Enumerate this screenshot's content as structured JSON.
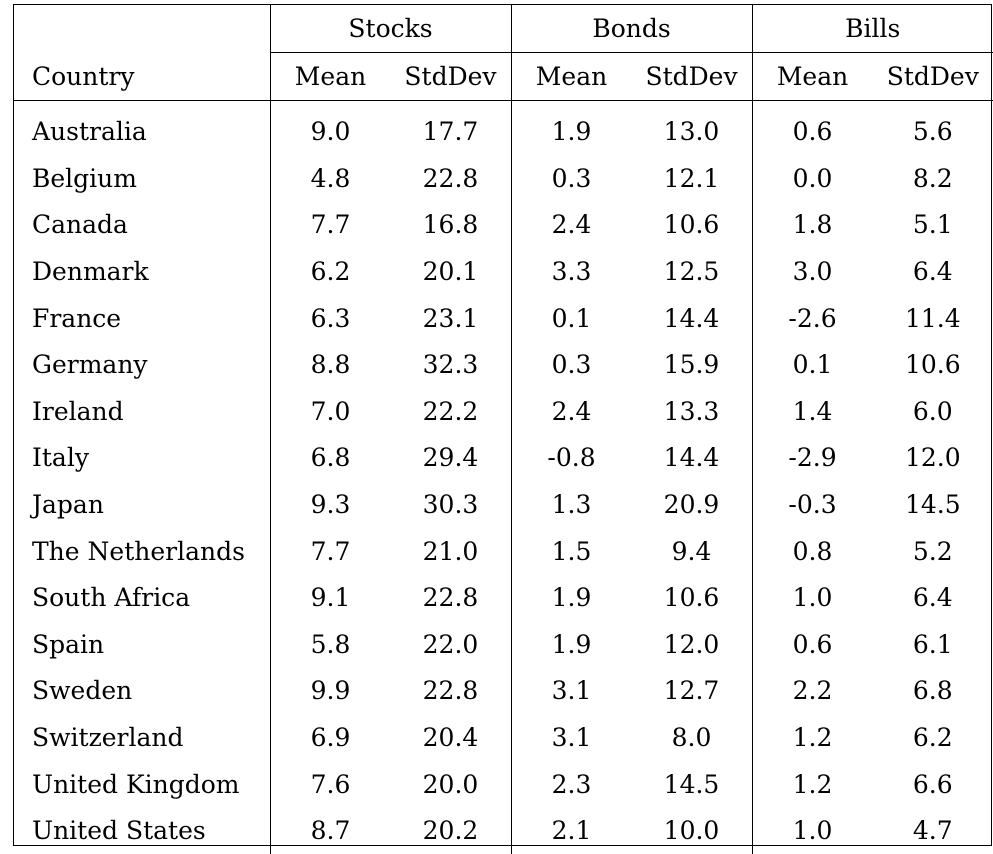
{
  "header": {
    "groups": [
      "Stocks",
      "Bonds",
      "Bills"
    ],
    "country_label": "Country",
    "sub": [
      "Mean",
      "StdDev",
      "Mean",
      "StdDev",
      "Mean",
      "StdDev"
    ]
  },
  "rows": [
    {
      "country": "Australia",
      "vals": [
        "9.0",
        "17.7",
        "1.9",
        "13.0",
        "0.6",
        "5.6"
      ]
    },
    {
      "country": "Belgium",
      "vals": [
        "4.8",
        "22.8",
        "0.3",
        "12.1",
        "0.0",
        "8.2"
      ]
    },
    {
      "country": "Canada",
      "vals": [
        "7.7",
        "16.8",
        "2.4",
        "10.6",
        "1.8",
        "5.1"
      ]
    },
    {
      "country": "Denmark",
      "vals": [
        "6.2",
        "20.1",
        "3.3",
        "12.5",
        "3.0",
        "6.4"
      ]
    },
    {
      "country": "France",
      "vals": [
        "6.3",
        "23.1",
        "0.1",
        "14.4",
        "-2.6",
        "11.4"
      ]
    },
    {
      "country": "Germany",
      "vals": [
        "8.8",
        "32.3",
        "0.3",
        "15.9",
        "0.1",
        "10.6"
      ]
    },
    {
      "country": "Ireland",
      "vals": [
        "7.0",
        "22.2",
        "2.4",
        "13.3",
        "1.4",
        "6.0"
      ]
    },
    {
      "country": "Italy",
      "vals": [
        "6.8",
        "29.4",
        "-0.8",
        "14.4",
        "-2.9",
        "12.0"
      ]
    },
    {
      "country": "Japan",
      "vals": [
        "9.3",
        "30.3",
        "1.3",
        "20.9",
        "-0.3",
        "14.5"
      ]
    },
    {
      "country": "The Netherlands",
      "vals": [
        "7.7",
        "21.0",
        "1.5",
        "9.4",
        "0.8",
        "5.2"
      ]
    },
    {
      "country": "South Africa",
      "vals": [
        "9.1",
        "22.8",
        "1.9",
        "10.6",
        "1.0",
        "6.4"
      ]
    },
    {
      "country": "Spain",
      "vals": [
        "5.8",
        "22.0",
        "1.9",
        "12.0",
        "0.6",
        "6.1"
      ]
    },
    {
      "country": "Sweden",
      "vals": [
        "9.9",
        "22.8",
        "3.1",
        "12.7",
        "2.2",
        "6.8"
      ]
    },
    {
      "country": "Switzerland",
      "vals": [
        "6.9",
        "20.4",
        "3.1",
        "8.0",
        "1.2",
        "6.2"
      ]
    },
    {
      "country": "United Kingdom",
      "vals": [
        "7.6",
        "20.0",
        "2.3",
        "14.5",
        "1.2",
        "6.6"
      ]
    },
    {
      "country": "United States",
      "vals": [
        "8.7",
        "20.2",
        "2.1",
        "10.0",
        "1.0",
        "4.7"
      ]
    }
  ]
}
